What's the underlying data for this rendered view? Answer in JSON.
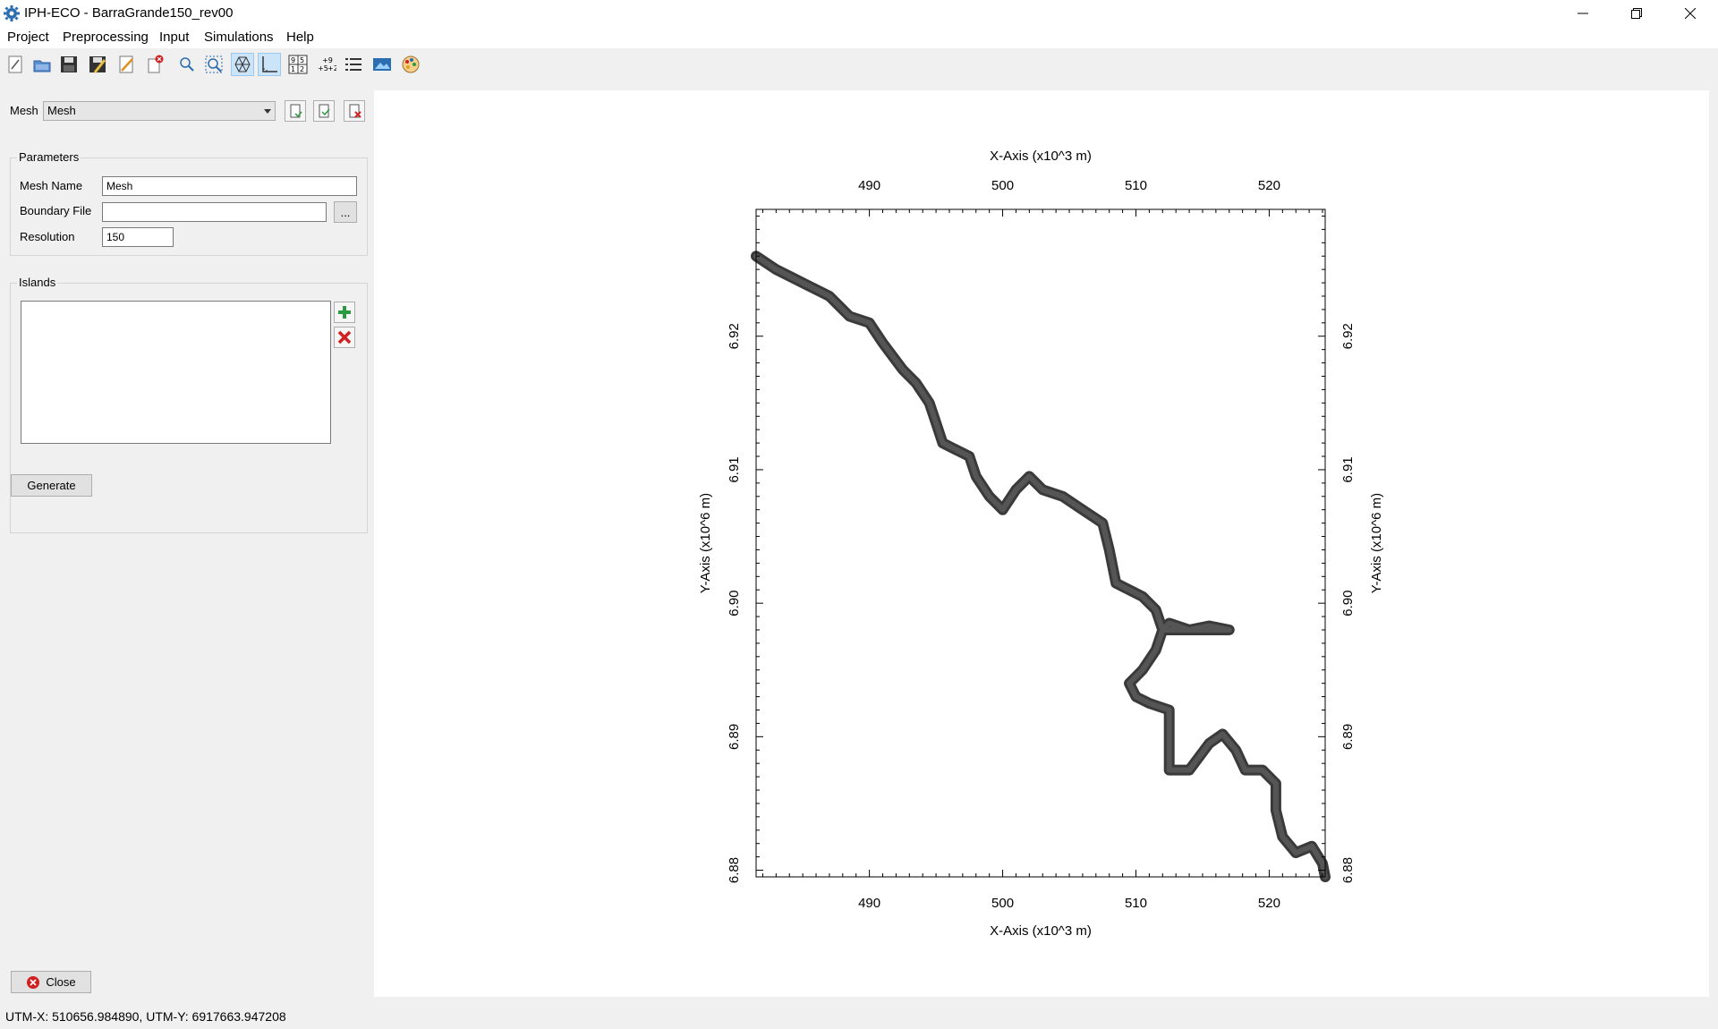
{
  "window": {
    "title": "IPH-ECO - BarraGrande150_rev00"
  },
  "menu": [
    "Project",
    "Preprocessing",
    "Input",
    "Simulations",
    "Help"
  ],
  "toolbar": {
    "icons": [
      "new-icon",
      "open-icon",
      "save-icon",
      "save-as-icon",
      "edit-icon",
      "clear-icon",
      "zoom-icon",
      "zoom-fit-icon",
      "mesh-view-icon",
      "axes-icon",
      "grid-numbers-icon",
      "values-icon",
      "legend-icon",
      "map-icon",
      "palette-icon"
    ],
    "active": [
      "mesh-view-icon",
      "axes-icon"
    ]
  },
  "mesh_selector": {
    "label": "Mesh",
    "value": "Mesh"
  },
  "parameters": {
    "title": "Parameters",
    "mesh_name_label": "Mesh Name",
    "mesh_name_value": "Mesh",
    "boundary_file_label": "Boundary File",
    "boundary_file_value": "",
    "browse_label": "...",
    "resolution_label": "Resolution",
    "resolution_value": "150"
  },
  "islands": {
    "title": "Islands",
    "items": []
  },
  "generate_label": "Generate",
  "close_label": "Close",
  "status": "UTM-X: 510656.984890, UTM-Y: 6917663.947208",
  "colors": {
    "mesh": "#3a3a3a",
    "background": "#ffffff",
    "panel": "#f0f0f0"
  },
  "chart_data": {
    "type": "map",
    "xlabel": "X-Axis (x10^3 m)",
    "ylabel": "Y-Axis (x10^6 m)",
    "xlim": [
      481.5,
      524.2
    ],
    "ylim": [
      6.8795,
      6.9295
    ],
    "x_ticks": [
      "490",
      "500",
      "510",
      "520"
    ],
    "x_tick_values": [
      490,
      500,
      510,
      520
    ],
    "y_ticks": [
      "6.88",
      "6.89",
      "6.90",
      "6.91",
      "6.92"
    ],
    "y_tick_values": [
      6.88,
      6.89,
      6.9,
      6.91,
      6.92
    ],
    "grid": false,
    "mesh_path": [
      [
        481.5,
        6.926
      ],
      [
        483,
        6.925
      ],
      [
        485,
        6.924
      ],
      [
        487,
        6.923
      ],
      [
        488.5,
        6.9215
      ],
      [
        490,
        6.921
      ],
      [
        491,
        6.9195
      ],
      [
        492.5,
        6.9175
      ],
      [
        493.5,
        6.9165
      ],
      [
        494.5,
        6.915
      ],
      [
        495,
        6.9135
      ],
      [
        495.5,
        6.912
      ],
      [
        496.5,
        6.9115
      ],
      [
        497.5,
        6.911
      ],
      [
        498,
        6.9095
      ],
      [
        499,
        6.908
      ],
      [
        500,
        6.907
      ],
      [
        501,
        6.9085
      ],
      [
        502,
        6.9095
      ],
      [
        503,
        6.9085
      ],
      [
        504.5,
        6.908
      ],
      [
        506,
        6.907
      ],
      [
        507.5,
        6.906
      ],
      [
        508,
        6.904
      ],
      [
        508.5,
        6.9015
      ],
      [
        510.5,
        6.9005
      ],
      [
        511.5,
        6.8995
      ],
      [
        512,
        6.898
      ],
      [
        512.5,
        6.8985
      ],
      [
        514,
        6.898
      ],
      [
        515.5,
        6.8983
      ],
      [
        517,
        6.898
      ],
      [
        512,
        6.898
      ],
      [
        511.5,
        6.8965
      ],
      [
        510.5,
        6.895
      ],
      [
        509.5,
        6.894
      ],
      [
        510,
        6.893
      ],
      [
        511,
        6.8925
      ],
      [
        512.5,
        6.892
      ],
      [
        512.5,
        6.8895
      ],
      [
        512.5,
        6.8875
      ],
      [
        514,
        6.8875
      ],
      [
        515.5,
        6.8895
      ],
      [
        516.5,
        6.8902
      ],
      [
        517.5,
        6.889
      ],
      [
        518.2,
        6.8875
      ],
      [
        519.5,
        6.8875
      ],
      [
        520.5,
        6.8865
      ],
      [
        520.5,
        6.8845
      ],
      [
        521,
        6.8825
      ],
      [
        522,
        6.8813
      ],
      [
        523.2,
        6.8818
      ],
      [
        524,
        6.8805
      ],
      [
        524.2,
        6.8795
      ]
    ]
  }
}
